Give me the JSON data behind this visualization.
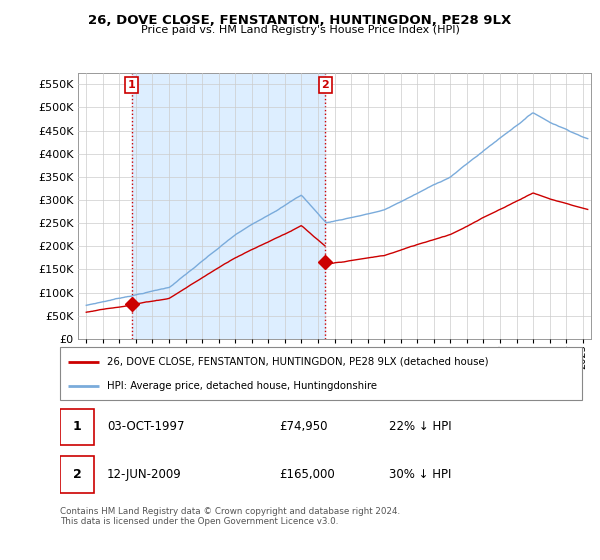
{
  "title1": "26, DOVE CLOSE, FENSTANTON, HUNTINGDON, PE28 9LX",
  "title2": "Price paid vs. HM Land Registry's House Price Index (HPI)",
  "ytick_vals": [
    0,
    50000,
    100000,
    150000,
    200000,
    250000,
    300000,
    350000,
    400000,
    450000,
    500000,
    550000
  ],
  "xlim": [
    1994.5,
    2025.5
  ],
  "ylim": [
    0,
    575000
  ],
  "xtick_years": [
    1995,
    1996,
    1997,
    1998,
    1999,
    2000,
    2001,
    2002,
    2003,
    2004,
    2005,
    2006,
    2007,
    2008,
    2009,
    2010,
    2011,
    2012,
    2013,
    2014,
    2015,
    2016,
    2017,
    2018,
    2019,
    2020,
    2021,
    2022,
    2023,
    2024,
    2025
  ],
  "sale1_x": 1997.75,
  "sale1_y": 74950,
  "sale2_x": 2009.45,
  "sale2_y": 165000,
  "red_color": "#cc0000",
  "blue_color": "#7aabdb",
  "shade_color": "#ddeeff",
  "legend_red_label": "26, DOVE CLOSE, FENSTANTON, HUNTINGDON, PE28 9LX (detached house)",
  "legend_blue_label": "HPI: Average price, detached house, Huntingdonshire",
  "table_row1": [
    "1",
    "03-OCT-1997",
    "£74,950",
    "22% ↓ HPI"
  ],
  "table_row2": [
    "2",
    "12-JUN-2009",
    "£165,000",
    "30% ↓ HPI"
  ],
  "footnote": "Contains HM Land Registry data © Crown copyright and database right 2024.\nThis data is licensed under the Open Government Licence v3.0.",
  "background_color": "#ffffff",
  "grid_color": "#cccccc"
}
